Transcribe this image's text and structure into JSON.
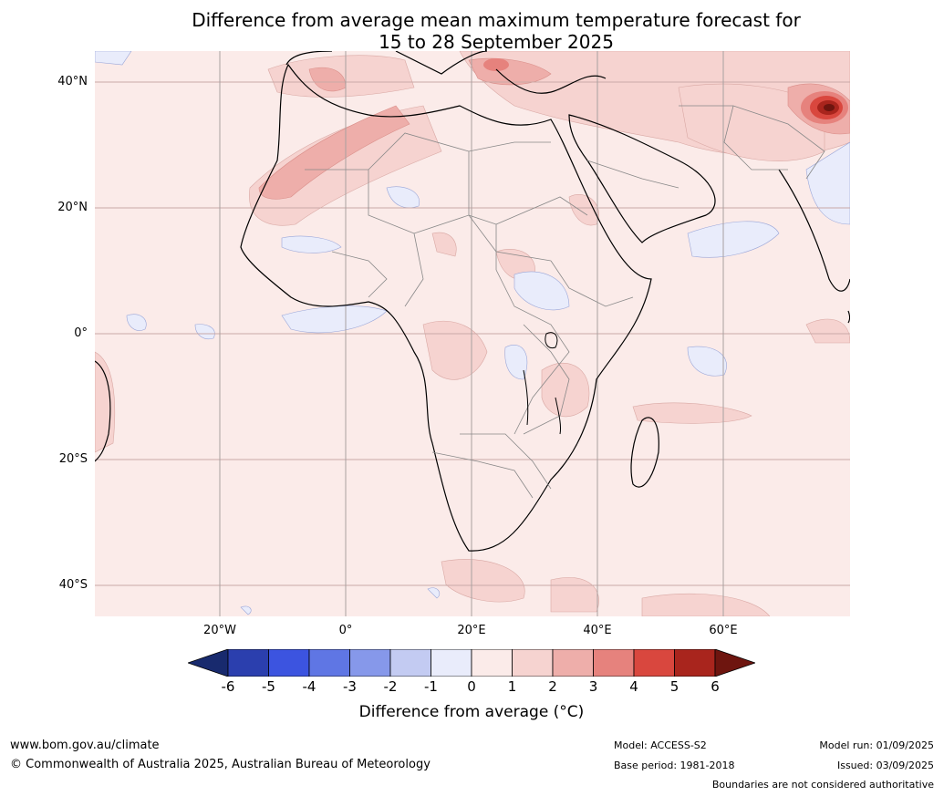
{
  "title_line1": "Difference from average mean maximum temperature forecast for",
  "title_line2": "15 to 28 September 2025",
  "lat_labels": [
    "40°N",
    "20°N",
    "0°",
    "20°S",
    "40°S"
  ],
  "lon_labels": [
    "20°W",
    "0°",
    "20°E",
    "40°E",
    "60°E"
  ],
  "colorbar": {
    "ticks": [
      "-6",
      "-5",
      "-4",
      "-3",
      "-2",
      "-1",
      "0",
      "1",
      "2",
      "3",
      "4",
      "5",
      "6"
    ],
    "colors": [
      "#2b3fae",
      "#3c54e0",
      "#5f76e4",
      "#8698ea",
      "#c3cbf2",
      "#e9ecfb",
      "#fbebe9",
      "#f6d3d0",
      "#eeaeaa",
      "#e6827d",
      "#d9473e",
      "#a9251d"
    ],
    "low_extend_color": "#182a6e",
    "high_extend_color": "#6e150f",
    "label": "Difference from average (°C)"
  },
  "footer": {
    "website": "www.bom.gov.au/climate",
    "copyright": "© Commonwealth of Australia 2025, Australian Bureau of Meteorology",
    "model": "Model: ACCESS-S2",
    "base_period": "Base period: 1981-2018",
    "model_run": "Model run: 01/09/2025",
    "issued": "Issued: 03/09/2025",
    "disclaimer": "Boundaries are not considered authoritative"
  }
}
